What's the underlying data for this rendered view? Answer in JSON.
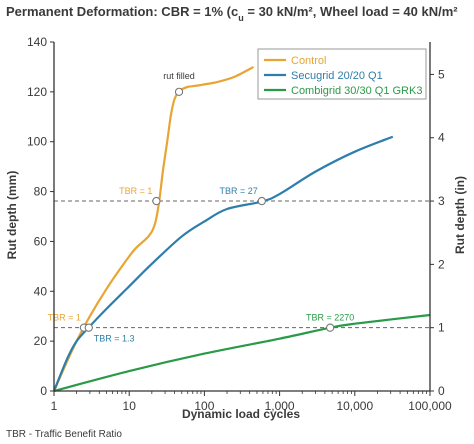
{
  "chart_data": {
    "type": "line",
    "title_prefix": "Permanent Deformation: CBR = 1% (c",
    "title_sub": "u",
    "title_suffix": " = 30 kN/m², Wheel load = 40 kN/m²",
    "xlabel": "Dynamic load cycles",
    "ylabel": "Rut depth (mm)",
    "y2label": "Rut depth (in)",
    "xscale": "log",
    "xlim": [
      1,
      100000
    ],
    "ylim": [
      0,
      140
    ],
    "y2lim": [
      0,
      5.512
    ],
    "xticks": [
      1,
      10,
      100,
      1000,
      10000,
      100000
    ],
    "xtick_labels": [
      "1",
      "10",
      "100",
      "1,000",
      "10,000",
      "100,000"
    ],
    "yticks": [
      0,
      20,
      40,
      60,
      80,
      100,
      120,
      140
    ],
    "ytick_labels": [
      "0",
      "20",
      "40",
      "60",
      "80",
      "100",
      "120",
      "140"
    ],
    "y2ticks": [
      0,
      1,
      2,
      3,
      4,
      5
    ],
    "y2tick_labels": [
      "0",
      "1",
      "2",
      "3",
      "4",
      "5"
    ],
    "reference_lines": [
      25.4,
      76.2
    ],
    "legend_position": "top-right",
    "series": [
      {
        "name": "Control",
        "color": "#E8A533",
        "x": [
          1,
          1.5,
          2,
          3,
          5,
          8,
          12,
          18,
          22,
          25,
          28,
          32,
          36,
          40,
          45,
          50,
          60,
          80,
          100,
          150,
          250,
          450
        ],
        "y": [
          0,
          12,
          20,
          30,
          41,
          50,
          57,
          62,
          67,
          76,
          88,
          100,
          111,
          117,
          120,
          121,
          122,
          122.5,
          123,
          124,
          126,
          130
        ]
      },
      {
        "name": "Secugrid 20/20 Q1",
        "color": "#2E7EAB",
        "x": [
          1,
          1.5,
          2,
          3,
          5,
          10,
          20,
          50,
          100,
          200,
          580,
          1000,
          3000,
          10000,
          32000
        ],
        "y": [
          0,
          13,
          20,
          26,
          33,
          42,
          51,
          62,
          68,
          73,
          76,
          79,
          88,
          96,
          102
        ]
      },
      {
        "name": "Combigrid 30/30 Q1 GRK3",
        "color": "#2A9A48",
        "x": [
          1,
          10,
          100,
          1000,
          4700,
          10000,
          100000
        ],
        "y": [
          0,
          8,
          15,
          21,
          25.4,
          27,
          30.5
        ]
      }
    ],
    "markers": [
      {
        "series": 0,
        "x": 2.5,
        "y": 25.4
      },
      {
        "series": 0,
        "x": 23,
        "y": 76.2
      },
      {
        "series": 0,
        "x": 46,
        "y": 120
      },
      {
        "series": 1,
        "x": 2.9,
        "y": 25.4
      },
      {
        "series": 1,
        "x": 580,
        "y": 76.2
      },
      {
        "series": 2,
        "x": 4700,
        "y": 25.4
      }
    ],
    "annotations": [
      {
        "text": "rut filled",
        "color": "#3a3a3a",
        "x": 46,
        "y": 120
      },
      {
        "text": "TBR = 1",
        "color": "#E8A533",
        "x": 23,
        "y": 76.2
      },
      {
        "text": "TBR = 27",
        "color": "#2E7EAB",
        "x": 580,
        "y": 76.2
      },
      {
        "text": "TBR = 1",
        "color": "#E8A533",
        "x": 2.5,
        "y": 25.4
      },
      {
        "text": "TBR = 1.3",
        "color": "#2E7EAB",
        "x": 2.9,
        "y": 25.4
      },
      {
        "text": "TBR = 2270",
        "color": "#2A9A48",
        "x": 4700,
        "y": 25.4
      }
    ]
  },
  "footnote": "TBR - Traffic Benefit Ratio"
}
